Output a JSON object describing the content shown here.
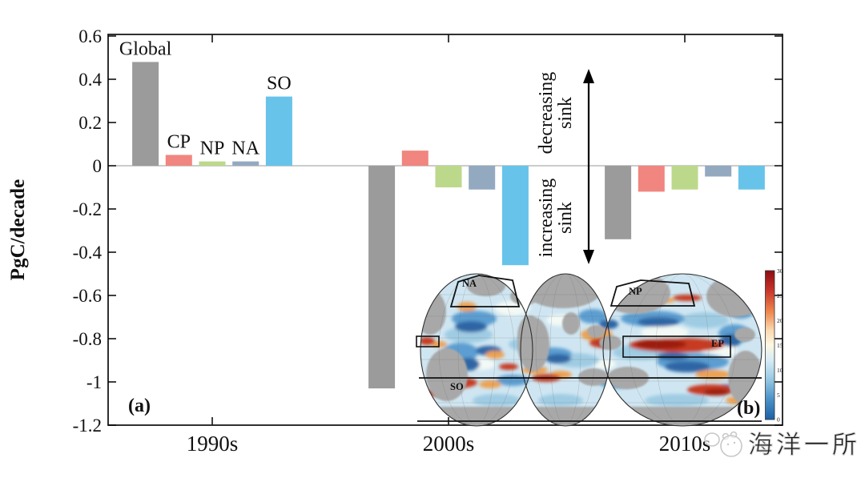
{
  "figure": {
    "panel_a_label": "(a)",
    "panel_b_label": "(b)"
  },
  "chart_data": {
    "type": "bar",
    "title": "",
    "xlabel": "",
    "ylabel": "PgC/decade",
    "ylim": [
      -1.2,
      0.6
    ],
    "yticks": [
      0.6,
      0.4,
      0.2,
      0,
      -0.2,
      -0.4,
      -0.6,
      -0.8,
      -1,
      -1.2
    ],
    "ytick_labels": [
      "0.6",
      "0.4",
      "0.2",
      "0",
      "-0.2",
      "-0.4",
      "-0.6",
      "-0.8",
      "-1",
      "-1.2"
    ],
    "categories": [
      "1990s",
      "2000s",
      "2010s"
    ],
    "series": [
      {
        "name": "Global",
        "color": "#9b9b9b",
        "values": [
          0.48,
          -1.03,
          -0.34
        ]
      },
      {
        "name": "CP",
        "color": "#f0867f",
        "values": [
          0.05,
          0.07,
          -0.12
        ]
      },
      {
        "name": "NP",
        "color": "#bcd98b",
        "values": [
          0.02,
          -0.1,
          -0.11
        ]
      },
      {
        "name": "NA",
        "color": "#93a9c0",
        "values": [
          0.02,
          -0.11,
          -0.05
        ]
      },
      {
        "name": "SO",
        "color": "#67c3ea",
        "values": [
          0.32,
          -0.46,
          -0.11
        ]
      }
    ],
    "bar_labels_shown_on_first_group": true,
    "annotations": {
      "upper": [
        "decreasing",
        "sink"
      ],
      "lower": [
        "increasing",
        "sink"
      ]
    },
    "grid": false,
    "legend_position": "none"
  },
  "map": {
    "regions": [
      {
        "label": "NA"
      },
      {
        "label": "NP"
      },
      {
        "label": "EP"
      },
      {
        "label": "SO"
      }
    ],
    "colorbar": {
      "ticks": [
        "30",
        "25",
        "20",
        "15",
        "10",
        "5",
        "0"
      ],
      "top_color": "#8c0d12",
      "mid_color": "#fdf8e2",
      "bottom_color": "#1d5fa6"
    }
  },
  "watermark": {
    "text": "海洋一所"
  }
}
